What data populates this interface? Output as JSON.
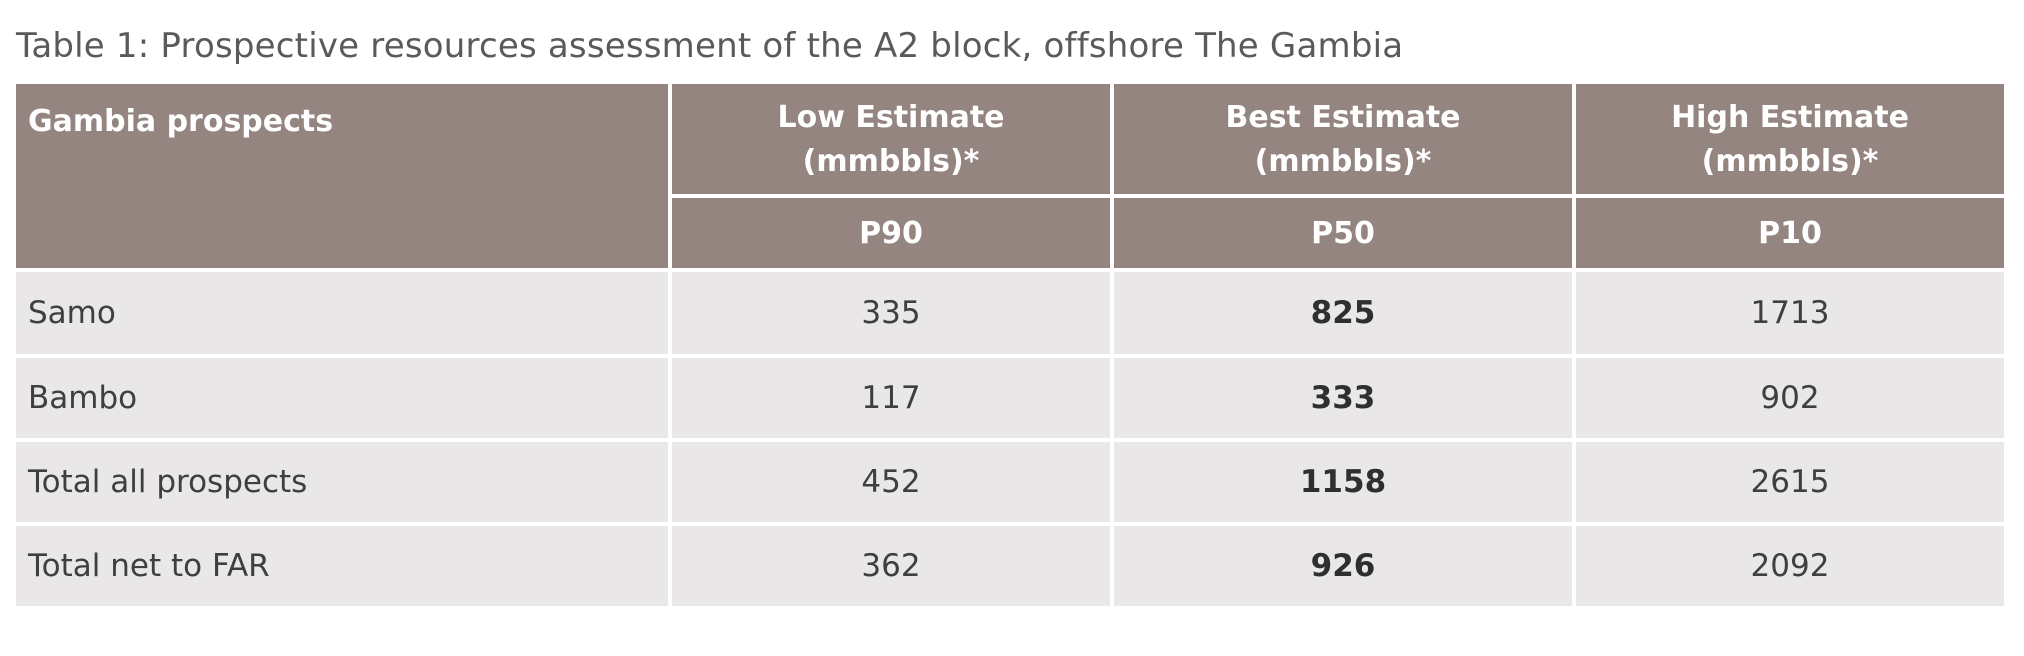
{
  "caption": "Table 1: Prospective resources assessment of the A2 block, offshore The Gambia",
  "colors": {
    "header_bg": "#948580",
    "header_text": "#ffffff",
    "row_bg": "#e9e7e7",
    "row_text": "#3f3f3f",
    "caption_text": "#5a5a5a"
  },
  "table": {
    "header": {
      "prospects": "Gambia prospects",
      "low": {
        "line1": "Low Estimate",
        "line2": "(mmbbls)*",
        "p": "P90"
      },
      "best": {
        "line1": "Best Estimate",
        "line2": "(mmbbls)*",
        "p": "P50"
      },
      "high": {
        "line1": "High Estimate",
        "line2": "(mmbbls)*",
        "p": "P10"
      }
    },
    "rows": [
      {
        "name": "Samo",
        "low": "335",
        "best": "825",
        "high": "1713"
      },
      {
        "name": "Bambo",
        "low": "117",
        "best": "333",
        "high": "902"
      },
      {
        "name": "Total all prospects",
        "low": "452",
        "best": "1158",
        "high": "2615"
      },
      {
        "name": "Total net to FAR",
        "low": "362",
        "best": "926",
        "high": "2092"
      }
    ]
  }
}
